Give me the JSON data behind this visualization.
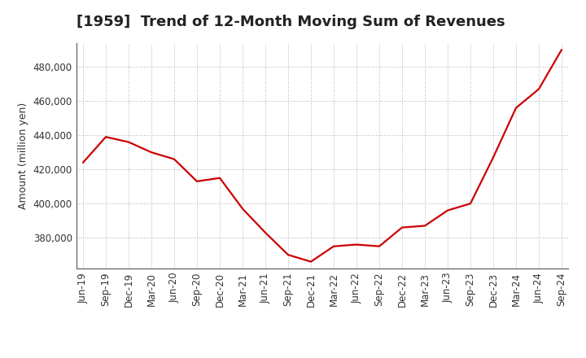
{
  "title": "[1959]  Trend of 12-Month Moving Sum of Revenues",
  "ylabel": "Amount (million yen)",
  "line_color": "#cc0000",
  "background_color": "#ffffff",
  "plot_bg_color": "#ffffff",
  "grid_color": "#999999",
  "x_labels": [
    "Jun-19",
    "Sep-19",
    "Dec-19",
    "Mar-20",
    "Jun-20",
    "Sep-20",
    "Dec-20",
    "Mar-21",
    "Jun-21",
    "Sep-21",
    "Dec-21",
    "Mar-22",
    "Jun-22",
    "Sep-22",
    "Dec-22",
    "Mar-23",
    "Jun-23",
    "Sep-23",
    "Dec-23",
    "Mar-24",
    "Jun-24",
    "Sep-24"
  ],
  "values": [
    424000,
    439000,
    436000,
    430000,
    426000,
    413000,
    415000,
    397000,
    383000,
    370000,
    366000,
    375000,
    376000,
    375000,
    386000,
    387000,
    396000,
    400000,
    427000,
    456000,
    467000,
    490000
  ],
  "ylim_min": 362000,
  "ylim_max": 494000,
  "yticks": [
    380000,
    400000,
    420000,
    440000,
    460000,
    480000
  ],
  "title_fontsize": 13,
  "axis_fontsize": 9,
  "tick_fontsize": 8.5
}
